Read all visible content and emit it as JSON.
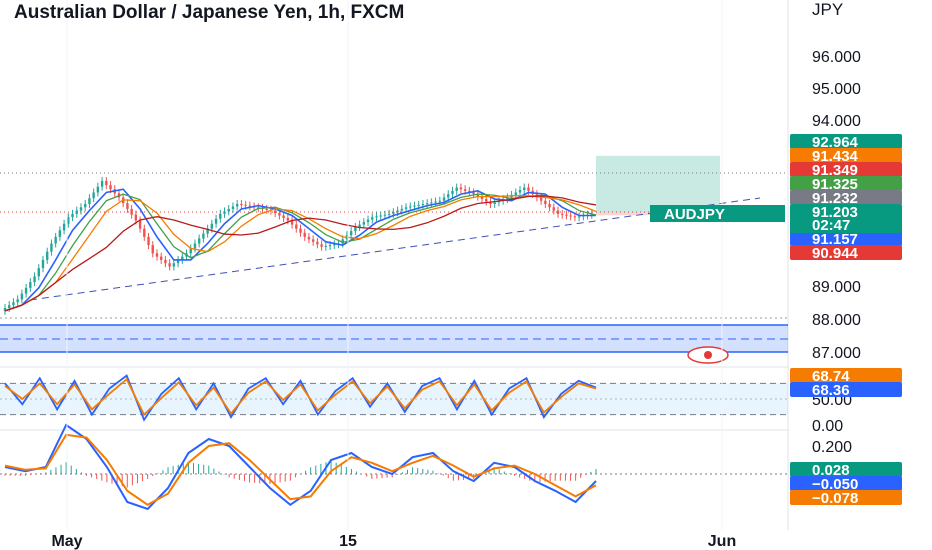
{
  "title": "Australian Dollar / Japanese Yen, 1h, FXCM",
  "currency": "JPY",
  "symbol_tag": "AUDJPY",
  "countdown": "02:47",
  "colors": {
    "blue": "#2962ff",
    "orange": "#f57c00",
    "green": "#43a047",
    "red": "#e53935",
    "dark_red": "#b71c1c",
    "teal": "#089981",
    "grey": "#787b86"
  },
  "chart_data": [
    {
      "type": "line",
      "title": "Australian Dollar / Japanese Yen, 1h, FXCM",
      "ylim": [
        87.5,
        97.2
      ],
      "y_ticks": [
        "96.000",
        "95.000",
        "94.000",
        "89.000",
        "88.000",
        "87.000"
      ],
      "x_ticks": [
        "May",
        "15",
        "Jun"
      ],
      "series": [
        {
          "name": "",
          "values": [
            88.25,
            88.6,
            89.3,
            90.3,
            91.1,
            91.5,
            92.2,
            91.7,
            91.0,
            90.0,
            89.6,
            90.0,
            90.6,
            91.2,
            91.5,
            91.4,
            91.3,
            91.0,
            90.5,
            90.2,
            90.3,
            90.8,
            91.1,
            91.2,
            91.4,
            91.5,
            91.6,
            92.0,
            91.8,
            91.5,
            91.7,
            92.0,
            91.6,
            91.2,
            91.1,
            91.2
          ]
        }
      ],
      "value_labels": [
        {
          "text": "92.964",
          "color": "#089981"
        },
        {
          "text": "91.434",
          "color": "#f57c00"
        },
        {
          "text": "91.349",
          "color": "#e53935"
        },
        {
          "text": "91.325",
          "color": "#43a047"
        },
        {
          "text": "91.232",
          "color": "#787b86"
        },
        {
          "text": "91.203",
          "color": "#089981"
        },
        {
          "text": "91.157",
          "color": "#2962ff"
        },
        {
          "text": "90.944",
          "color": "#e53935"
        }
      ],
      "trade_box": {
        "target": 92.964,
        "entry": 91.232,
        "stop": 91.157
      },
      "zone": {
        "low": 87.35,
        "high": 87.85
      }
    },
    {
      "type": "line",
      "title": "",
      "ylim": [
        0,
        100
      ],
      "y_ticks": [
        "50.00",
        "0.00"
      ],
      "band": [
        20,
        80
      ],
      "series": [
        {
          "name": "",
          "color": "#2962ff",
          "values": [
            80,
            40,
            90,
            30,
            85,
            20,
            70,
            95,
            10,
            60,
            90,
            30,
            80,
            15,
            70,
            90,
            40,
            85,
            20,
            65,
            90,
            35,
            80,
            25,
            75,
            90,
            30,
            85,
            20,
            70,
            90,
            15,
            60,
            85,
            72
          ]
        },
        {
          "name": "",
          "color": "#f57c00",
          "values": [
            75,
            50,
            80,
            40,
            78,
            30,
            60,
            88,
            20,
            52,
            82,
            38,
            72,
            22,
            62,
            84,
            48,
            78,
            28,
            58,
            84,
            42,
            74,
            32,
            68,
            84,
            38,
            78,
            28,
            62,
            84,
            24,
            54,
            80,
            70
          ]
        }
      ],
      "value_labels": [
        {
          "text": "68.74",
          "color": "#f57c00"
        },
        {
          "text": "68.36",
          "color": "#2962ff"
        }
      ]
    },
    {
      "type": "line",
      "title": "",
      "y_ticks": [
        "0.200",
        "0.000"
      ],
      "series": [
        {
          "name": "",
          "color": "#2962ff",
          "values": [
            0.05,
            0.02,
            0.05,
            0.35,
            0.25,
            0.05,
            -0.2,
            -0.25,
            -0.1,
            0.15,
            0.25,
            0.2,
            0.05,
            -0.1,
            -0.22,
            -0.12,
            0.1,
            0.15,
            0.05,
            0.0,
            0.12,
            0.15,
            0.02,
            -0.05,
            0.08,
            0.05,
            -0.05,
            -0.12,
            -0.2,
            -0.05
          ]
        },
        {
          "name": "",
          "color": "#f57c00",
          "values": [
            0.06,
            0.03,
            0.04,
            0.28,
            0.26,
            0.1,
            -0.12,
            -0.22,
            -0.14,
            0.08,
            0.2,
            0.22,
            0.1,
            -0.04,
            -0.18,
            -0.16,
            0.02,
            0.12,
            0.08,
            0.02,
            0.08,
            0.13,
            0.06,
            -0.02,
            0.04,
            0.06,
            0.0,
            -0.08,
            -0.16,
            -0.08
          ]
        }
      ],
      "value_labels": [
        {
          "text": "0.028",
          "color": "#089981"
        },
        {
          "text": "−0.050",
          "color": "#2962ff"
        },
        {
          "text": "−0.078",
          "color": "#f57c00"
        }
      ]
    }
  ]
}
